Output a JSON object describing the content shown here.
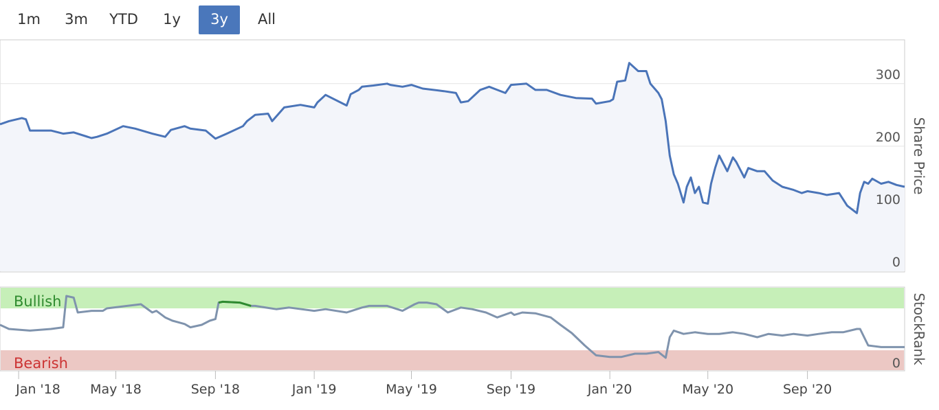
{
  "range_selector": {
    "buttons": [
      "1m",
      "3m",
      "YTD",
      "1y",
      "3y",
      "All"
    ],
    "active": "3y"
  },
  "colors": {
    "price_line": "#4a74b8",
    "price_fill": "#f3f5fa",
    "rank_line": "#7f93ad",
    "rank_bull_line": "#2e8b2e",
    "rank_bear_line": "#cc4444",
    "bullish_band": "#c6efb8",
    "bearish_band": "#ecc8c4",
    "bullish_text": "#2e8b2e",
    "bearish_text": "#cc3333",
    "active_button": "#4a77bb"
  },
  "chart_data": [
    {
      "type": "area",
      "ylabel": "Share Price",
      "yticks": [
        0,
        100,
        200,
        300
      ],
      "ylim": [
        0,
        370
      ],
      "xlim": [
        "2017-12-09",
        "2020-12-30"
      ],
      "grid": true,
      "x": [
        "2017-12-09",
        "2017-12-20",
        "2018-01-05",
        "2018-01-10",
        "2018-01-15",
        "2018-02-10",
        "2018-02-25",
        "2018-03-10",
        "2018-04-01",
        "2018-04-08",
        "2018-04-20",
        "2018-05-10",
        "2018-05-25",
        "2018-06-15",
        "2018-07-01",
        "2018-07-08",
        "2018-07-25",
        "2018-08-01",
        "2018-08-20",
        "2018-09-01",
        "2018-09-15",
        "2018-10-05",
        "2018-10-10",
        "2018-10-20",
        "2018-11-05",
        "2018-11-10",
        "2018-11-25",
        "2018-12-15",
        "2019-01-01",
        "2019-01-05",
        "2019-01-15",
        "2019-02-10",
        "2019-02-15",
        "2019-02-25",
        "2019-03-01",
        "2019-03-15",
        "2019-04-01",
        "2019-04-05",
        "2019-04-20",
        "2019-05-01",
        "2019-05-15",
        "2019-06-10",
        "2019-06-25",
        "2019-07-01",
        "2019-07-10",
        "2019-07-25",
        "2019-08-05",
        "2019-08-15",
        "2019-08-25",
        "2019-09-01",
        "2019-09-20",
        "2019-10-01",
        "2019-10-15",
        "2019-11-01",
        "2019-11-20",
        "2019-12-10",
        "2019-12-15",
        "2020-01-01",
        "2020-01-05",
        "2020-01-10",
        "2020-01-20",
        "2020-01-25",
        "2020-02-05",
        "2020-02-15",
        "2020-02-20",
        "2020-03-01",
        "2020-03-05",
        "2020-03-10",
        "2020-03-15",
        "2020-03-20",
        "2020-03-25",
        "2020-04-01",
        "2020-04-05",
        "2020-04-10",
        "2020-04-15",
        "2020-04-20",
        "2020-04-25",
        "2020-05-01",
        "2020-05-05",
        "2020-05-10",
        "2020-05-15",
        "2020-05-25",
        "2020-06-01",
        "2020-06-05",
        "2020-06-15",
        "2020-06-20",
        "2020-07-01",
        "2020-07-10",
        "2020-07-20",
        "2020-08-01",
        "2020-08-15",
        "2020-08-25",
        "2020-09-01",
        "2020-09-15",
        "2020-09-25",
        "2020-10-10",
        "2020-10-20",
        "2020-11-01",
        "2020-11-05",
        "2020-11-10",
        "2020-11-15",
        "2020-11-20",
        "2020-12-01",
        "2020-12-10",
        "2020-12-20",
        "2020-12-30"
      ],
      "series": [
        {
          "values": [
            235,
            240,
            245,
            243,
            225,
            225,
            220,
            222,
            213,
            215,
            220,
            232,
            228,
            220,
            215,
            226,
            232,
            228,
            225,
            212,
            220,
            232,
            240,
            250,
            252,
            240,
            262,
            266,
            262,
            270,
            282,
            265,
            283,
            290,
            295,
            297,
            300,
            298,
            295,
            298,
            292,
            288,
            285,
            270,
            272,
            290,
            295,
            290,
            285,
            298,
            300,
            290,
            290,
            282,
            277,
            276,
            268,
            272,
            275,
            303,
            305,
            333,
            320,
            320,
            300,
            285,
            275,
            240,
            185,
            155,
            140,
            110,
            135,
            150,
            125,
            135,
            110,
            108,
            140,
            165,
            185,
            160,
            182,
            175,
            150,
            165,
            160,
            160,
            145,
            135,
            130,
            125,
            128,
            125,
            122,
            125,
            105,
            93,
            125,
            143,
            140,
            148,
            140,
            143,
            138,
            135
          ]
        }
      ]
    },
    {
      "type": "line",
      "ylabel": "StockRank",
      "yticks": [
        0
      ],
      "bands": [
        {
          "label": "Bullish",
          "from": 80,
          "to": 100
        },
        {
          "label": "Bearish",
          "from": 0,
          "to": 20
        }
      ],
      "ylim": [
        0,
        100
      ],
      "xlim": [
        "2017-12-09",
        "2020-12-30"
      ],
      "x": [
        "2017-12-09",
        "2017-12-20",
        "2018-01-15",
        "2018-02-10",
        "2018-02-25",
        "2018-03-01",
        "2018-03-10",
        "2018-03-15",
        "2018-04-01",
        "2018-04-15",
        "2018-04-20",
        "2018-05-15",
        "2018-06-01",
        "2018-06-15",
        "2018-06-20",
        "2018-07-01",
        "2018-07-10",
        "2018-07-25",
        "2018-08-01",
        "2018-08-15",
        "2018-08-25",
        "2018-09-01",
        "2018-09-05",
        "2018-09-10",
        "2018-10-01",
        "2018-10-15",
        "2018-10-20",
        "2018-11-15",
        "2018-12-01",
        "2019-01-01",
        "2019-01-15",
        "2019-02-10",
        "2019-03-01",
        "2019-03-10",
        "2019-04-01",
        "2019-04-20",
        "2019-05-05",
        "2019-05-10",
        "2019-05-20",
        "2019-06-01",
        "2019-06-15",
        "2019-07-01",
        "2019-07-15",
        "2019-08-01",
        "2019-08-15",
        "2019-09-01",
        "2019-09-05",
        "2019-09-15",
        "2019-10-01",
        "2019-10-20",
        "2019-11-01",
        "2019-11-15",
        "2019-12-01",
        "2019-12-15",
        "2020-01-01",
        "2020-01-15",
        "2020-02-01",
        "2020-02-15",
        "2020-03-01",
        "2020-03-10",
        "2020-03-15",
        "2020-03-20",
        "2020-04-01",
        "2020-04-15",
        "2020-05-01",
        "2020-05-15",
        "2020-06-01",
        "2020-06-15",
        "2020-07-01",
        "2020-07-15",
        "2020-08-01",
        "2020-08-15",
        "2020-09-01",
        "2020-09-15",
        "2020-10-01",
        "2020-10-15",
        "2020-11-01",
        "2020-11-05",
        "2020-11-15",
        "2020-12-01",
        "2020-12-30"
      ],
      "series": [
        {
          "values": [
            55,
            50,
            48,
            50,
            52,
            90,
            88,
            70,
            72,
            72,
            75,
            78,
            80,
            70,
            72,
            64,
            60,
            56,
            52,
            55,
            60,
            62,
            82,
            83,
            82,
            78,
            78,
            74,
            76,
            72,
            74,
            70,
            76,
            78,
            78,
            72,
            80,
            82,
            82,
            80,
            70,
            76,
            74,
            70,
            64,
            70,
            67,
            70,
            69,
            64,
            55,
            45,
            30,
            18,
            16,
            16,
            20,
            20,
            22,
            15,
            40,
            48,
            44,
            46,
            44,
            44,
            46,
            44,
            40,
            44,
            42,
            44,
            42,
            44,
            46,
            46,
            50,
            50,
            30,
            28,
            28
          ]
        }
      ],
      "bullish_segment": {
        "from": "2018-09-05",
        "to": "2018-10-15"
      }
    }
  ],
  "x_axis": {
    "tick_dates": [
      "2018-01-01",
      "2018-05-01",
      "2018-09-01",
      "2019-01-01",
      "2019-05-01",
      "2019-09-01",
      "2020-01-01",
      "2020-05-01",
      "2020-09-01"
    ],
    "tick_labels": [
      "Jan '18",
      "May '18",
      "Sep '18",
      "Jan '19",
      "May '19",
      "Sep '19",
      "Jan '20",
      "May '20",
      "Sep '20"
    ]
  }
}
